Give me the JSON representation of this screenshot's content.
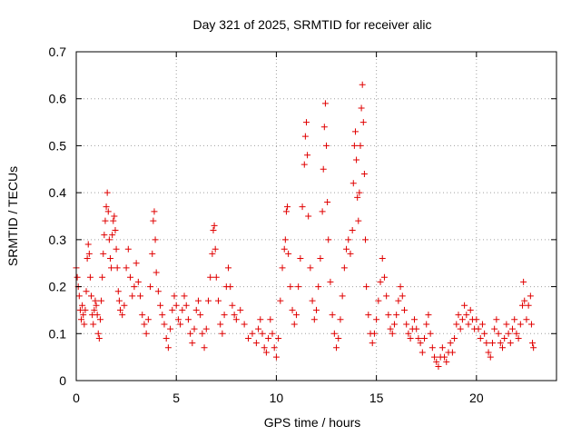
{
  "chart_data": {
    "type": "scatter",
    "title": "Day 321 of 2025, SRMTID for receiver alic",
    "xlabel": "GPS time / hours",
    "ylabel": "SRMTID / TECUs",
    "xlim": [
      0,
      24
    ],
    "ylim": [
      0,
      0.7
    ],
    "xticks": [
      0,
      5,
      10,
      15,
      20
    ],
    "yticks": [
      0,
      0.1,
      0.2,
      0.3,
      0.4,
      0.5,
      0.6,
      0.7
    ],
    "xtick_labels": [
      "0",
      "5",
      "10",
      "15",
      "20"
    ],
    "ytick_labels": [
      "0",
      "0.1",
      "0.2",
      "0.3",
      "0.4",
      "0.5",
      "0.6",
      "0.7"
    ],
    "grid": true,
    "marker": "+",
    "series": [
      {
        "name": "SRMTID",
        "color": "#e00000",
        "points": [
          [
            0.0,
            0.24
          ],
          [
            0.05,
            0.22
          ],
          [
            0.1,
            0.2
          ],
          [
            0.15,
            0.18
          ],
          [
            0.2,
            0.15
          ],
          [
            0.25,
            0.13
          ],
          [
            0.3,
            0.16
          ],
          [
            0.35,
            0.14
          ],
          [
            0.4,
            0.12
          ],
          [
            0.45,
            0.15
          ],
          [
            0.5,
            0.19
          ],
          [
            0.55,
            0.26
          ],
          [
            0.6,
            0.29
          ],
          [
            0.65,
            0.27
          ],
          [
            0.7,
            0.22
          ],
          [
            0.75,
            0.18
          ],
          [
            0.8,
            0.14
          ],
          [
            0.85,
            0.12
          ],
          [
            0.9,
            0.15
          ],
          [
            0.95,
            0.17
          ],
          [
            1.0,
            0.16
          ],
          [
            1.05,
            0.14
          ],
          [
            1.1,
            0.1
          ],
          [
            1.15,
            0.09
          ],
          [
            1.2,
            0.13
          ],
          [
            1.25,
            0.17
          ],
          [
            1.3,
            0.22
          ],
          [
            1.35,
            0.27
          ],
          [
            1.4,
            0.31
          ],
          [
            1.45,
            0.34
          ],
          [
            1.5,
            0.37
          ],
          [
            1.55,
            0.4
          ],
          [
            1.6,
            0.36
          ],
          [
            1.65,
            0.3
          ],
          [
            1.7,
            0.26
          ],
          [
            1.75,
            0.24
          ],
          [
            1.8,
            0.31
          ],
          [
            1.85,
            0.34
          ],
          [
            1.9,
            0.35
          ],
          [
            1.95,
            0.32
          ],
          [
            2.0,
            0.28
          ],
          [
            2.05,
            0.24
          ],
          [
            2.1,
            0.19
          ],
          [
            2.15,
            0.17
          ],
          [
            2.2,
            0.15
          ],
          [
            2.3,
            0.14
          ],
          [
            2.4,
            0.16
          ],
          [
            2.5,
            0.24
          ],
          [
            2.6,
            0.28
          ],
          [
            2.7,
            0.22
          ],
          [
            2.8,
            0.18
          ],
          [
            2.9,
            0.2
          ],
          [
            3.0,
            0.25
          ],
          [
            3.1,
            0.21
          ],
          [
            3.2,
            0.18
          ],
          [
            3.3,
            0.14
          ],
          [
            3.4,
            0.12
          ],
          [
            3.5,
            0.1
          ],
          [
            3.6,
            0.13
          ],
          [
            3.7,
            0.2
          ],
          [
            3.8,
            0.27
          ],
          [
            3.85,
            0.34
          ],
          [
            3.9,
            0.36
          ],
          [
            3.95,
            0.3
          ],
          [
            4.0,
            0.23
          ],
          [
            4.1,
            0.19
          ],
          [
            4.2,
            0.16
          ],
          [
            4.3,
            0.14
          ],
          [
            4.4,
            0.12
          ],
          [
            4.5,
            0.09
          ],
          [
            4.6,
            0.07
          ],
          [
            4.7,
            0.11
          ],
          [
            4.8,
            0.15
          ],
          [
            4.9,
            0.18
          ],
          [
            5.0,
            0.16
          ],
          [
            5.1,
            0.13
          ],
          [
            5.2,
            0.12
          ],
          [
            5.3,
            0.15
          ],
          [
            5.4,
            0.18
          ],
          [
            5.5,
            0.16
          ],
          [
            5.6,
            0.13
          ],
          [
            5.7,
            0.1
          ],
          [
            5.8,
            0.08
          ],
          [
            5.9,
            0.11
          ],
          [
            6.0,
            0.15
          ],
          [
            6.1,
            0.17
          ],
          [
            6.2,
            0.14
          ],
          [
            6.3,
            0.1
          ],
          [
            6.4,
            0.07
          ],
          [
            6.5,
            0.11
          ],
          [
            6.6,
            0.17
          ],
          [
            6.7,
            0.22
          ],
          [
            6.8,
            0.27
          ],
          [
            6.85,
            0.32
          ],
          [
            6.9,
            0.33
          ],
          [
            6.95,
            0.28
          ],
          [
            7.0,
            0.22
          ],
          [
            7.1,
            0.17
          ],
          [
            7.2,
            0.12
          ],
          [
            7.3,
            0.1
          ],
          [
            7.4,
            0.14
          ],
          [
            7.5,
            0.2
          ],
          [
            7.6,
            0.24
          ],
          [
            7.7,
            0.2
          ],
          [
            7.8,
            0.16
          ],
          [
            7.9,
            0.14
          ],
          [
            8.0,
            0.13
          ],
          [
            8.2,
            0.15
          ],
          [
            8.4,
            0.12
          ],
          [
            8.6,
            0.09
          ],
          [
            8.8,
            0.1
          ],
          [
            9.0,
            0.08
          ],
          [
            9.1,
            0.11
          ],
          [
            9.2,
            0.13
          ],
          [
            9.3,
            0.1
          ],
          [
            9.4,
            0.07
          ],
          [
            9.5,
            0.06
          ],
          [
            9.6,
            0.09
          ],
          [
            9.7,
            0.13
          ],
          [
            9.8,
            0.1
          ],
          [
            9.9,
            0.07
          ],
          [
            10.0,
            0.05
          ],
          [
            10.1,
            0.09
          ],
          [
            10.2,
            0.17
          ],
          [
            10.3,
            0.24
          ],
          [
            10.4,
            0.28
          ],
          [
            10.45,
            0.3
          ],
          [
            10.5,
            0.36
          ],
          [
            10.55,
            0.37
          ],
          [
            10.6,
            0.27
          ],
          [
            10.7,
            0.2
          ],
          [
            10.8,
            0.15
          ],
          [
            10.9,
            0.12
          ],
          [
            11.0,
            0.14
          ],
          [
            11.1,
            0.2
          ],
          [
            11.2,
            0.26
          ],
          [
            11.3,
            0.37
          ],
          [
            11.4,
            0.46
          ],
          [
            11.45,
            0.52
          ],
          [
            11.5,
            0.55
          ],
          [
            11.55,
            0.48
          ],
          [
            11.6,
            0.35
          ],
          [
            11.7,
            0.24
          ],
          [
            11.8,
            0.17
          ],
          [
            11.9,
            0.13
          ],
          [
            12.0,
            0.15
          ],
          [
            12.1,
            0.2
          ],
          [
            12.2,
            0.26
          ],
          [
            12.3,
            0.36
          ],
          [
            12.35,
            0.45
          ],
          [
            12.4,
            0.54
          ],
          [
            12.45,
            0.59
          ],
          [
            12.5,
            0.5
          ],
          [
            12.55,
            0.38
          ],
          [
            12.6,
            0.3
          ],
          [
            12.7,
            0.21
          ],
          [
            12.8,
            0.14
          ],
          [
            12.9,
            0.1
          ],
          [
            13.0,
            0.07
          ],
          [
            13.1,
            0.09
          ],
          [
            13.2,
            0.13
          ],
          [
            13.3,
            0.18
          ],
          [
            13.4,
            0.24
          ],
          [
            13.5,
            0.28
          ],
          [
            13.6,
            0.3
          ],
          [
            13.7,
            0.27
          ],
          [
            13.8,
            0.32
          ],
          [
            13.85,
            0.42
          ],
          [
            13.9,
            0.5
          ],
          [
            13.95,
            0.53
          ],
          [
            14.0,
            0.47
          ],
          [
            14.05,
            0.39
          ],
          [
            14.1,
            0.34
          ],
          [
            14.15,
            0.4
          ],
          [
            14.2,
            0.5
          ],
          [
            14.25,
            0.58
          ],
          [
            14.3,
            0.63
          ],
          [
            14.35,
            0.55
          ],
          [
            14.4,
            0.44
          ],
          [
            14.45,
            0.3
          ],
          [
            14.5,
            0.2
          ],
          [
            14.6,
            0.14
          ],
          [
            14.7,
            0.1
          ],
          [
            14.8,
            0.08
          ],
          [
            14.9,
            0.1
          ],
          [
            15.0,
            0.13
          ],
          [
            15.1,
            0.17
          ],
          [
            15.2,
            0.21
          ],
          [
            15.3,
            0.26
          ],
          [
            15.4,
            0.22
          ],
          [
            15.5,
            0.18
          ],
          [
            15.6,
            0.14
          ],
          [
            15.7,
            0.11
          ],
          [
            15.8,
            0.1
          ],
          [
            15.9,
            0.12
          ],
          [
            16.0,
            0.14
          ],
          [
            16.1,
            0.17
          ],
          [
            16.2,
            0.2
          ],
          [
            16.3,
            0.18
          ],
          [
            16.4,
            0.15
          ],
          [
            16.5,
            0.12
          ],
          [
            16.6,
            0.1
          ],
          [
            16.7,
            0.09
          ],
          [
            16.8,
            0.11
          ],
          [
            16.9,
            0.13
          ],
          [
            17.0,
            0.11
          ],
          [
            17.1,
            0.09
          ],
          [
            17.2,
            0.08
          ],
          [
            17.3,
            0.06
          ],
          [
            17.4,
            0.09
          ],
          [
            17.5,
            0.12
          ],
          [
            17.6,
            0.14
          ],
          [
            17.7,
            0.1
          ],
          [
            17.8,
            0.07
          ],
          [
            17.9,
            0.05
          ],
          [
            18.0,
            0.04
          ],
          [
            18.1,
            0.03
          ],
          [
            18.2,
            0.05
          ],
          [
            18.3,
            0.07
          ],
          [
            18.4,
            0.05
          ],
          [
            18.5,
            0.04
          ],
          [
            18.6,
            0.06
          ],
          [
            18.7,
            0.08
          ],
          [
            18.8,
            0.06
          ],
          [
            18.9,
            0.09
          ],
          [
            19.0,
            0.12
          ],
          [
            19.1,
            0.14
          ],
          [
            19.2,
            0.11
          ],
          [
            19.3,
            0.13
          ],
          [
            19.4,
            0.16
          ],
          [
            19.5,
            0.14
          ],
          [
            19.6,
            0.12
          ],
          [
            19.7,
            0.15
          ],
          [
            19.8,
            0.13
          ],
          [
            19.9,
            0.11
          ],
          [
            20.0,
            0.13
          ],
          [
            20.1,
            0.11
          ],
          [
            20.2,
            0.09
          ],
          [
            20.3,
            0.12
          ],
          [
            20.4,
            0.1
          ],
          [
            20.5,
            0.08
          ],
          [
            20.6,
            0.06
          ],
          [
            20.7,
            0.05
          ],
          [
            20.8,
            0.08
          ],
          [
            20.9,
            0.11
          ],
          [
            21.0,
            0.13
          ],
          [
            21.1,
            0.1
          ],
          [
            21.2,
            0.08
          ],
          [
            21.3,
            0.07
          ],
          [
            21.4,
            0.09
          ],
          [
            21.5,
            0.12
          ],
          [
            21.6,
            0.1
          ],
          [
            21.7,
            0.08
          ],
          [
            21.8,
            0.11
          ],
          [
            21.9,
            0.13
          ],
          [
            22.0,
            0.1
          ],
          [
            22.1,
            0.09
          ],
          [
            22.2,
            0.12
          ],
          [
            22.3,
            0.16
          ],
          [
            22.35,
            0.21
          ],
          [
            22.4,
            0.17
          ],
          [
            22.5,
            0.13
          ],
          [
            22.6,
            0.16
          ],
          [
            22.7,
            0.18
          ],
          [
            22.75,
            0.12
          ],
          [
            22.8,
            0.08
          ],
          [
            22.85,
            0.07
          ]
        ]
      }
    ]
  }
}
